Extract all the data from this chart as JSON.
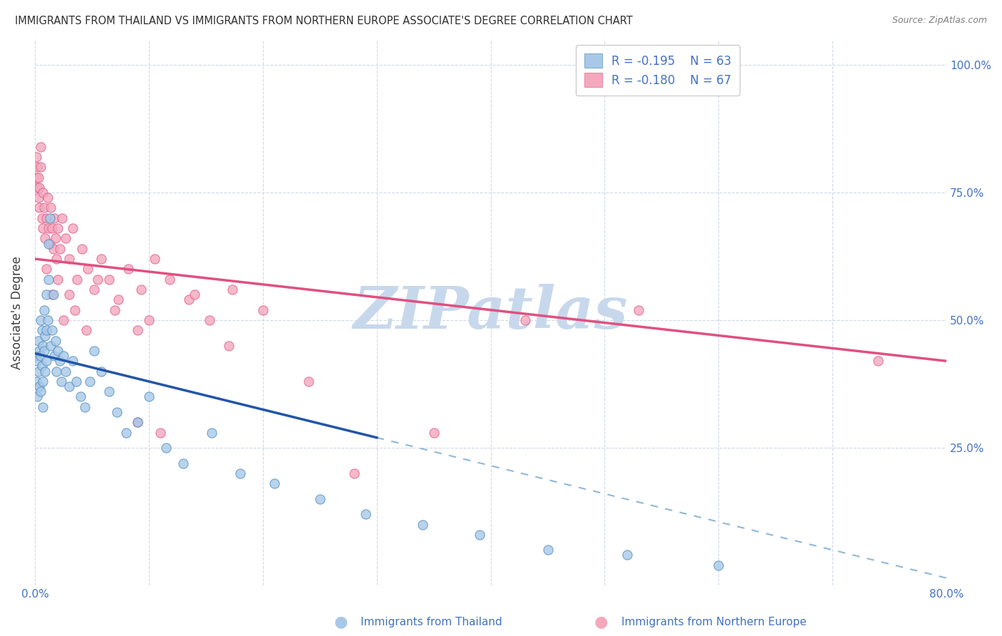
{
  "title": "IMMIGRANTS FROM THAILAND VS IMMIGRANTS FROM NORTHERN EUROPE ASSOCIATE'S DEGREE CORRELATION CHART",
  "source": "Source: ZipAtlas.com",
  "ylabel": "Associate's Degree",
  "y_tick_values": [
    0.25,
    0.5,
    0.75,
    1.0
  ],
  "legend_entries": [
    {
      "color": "#a8c8e8",
      "R": "-0.195",
      "N": "63"
    },
    {
      "color": "#f4a8bc",
      "R": "-0.180",
      "N": "67"
    }
  ],
  "legend_text_color": "#4472c4",
  "series1_name": "Immigrants from Thailand",
  "series2_name": "Immigrants from Northern Europe",
  "series1_color": "#a8c8e8",
  "series2_color": "#f4a8bc",
  "series1_edge": "#5590c0",
  "series2_edge": "#e06090",
  "trend1_color": "#2255aa",
  "trend2_color": "#e05080",
  "trend1_dashed_color": "#90b8d8",
  "background_color": "#ffffff",
  "grid_color": "#d0d8e8",
  "title_color": "#303030",
  "axis_label_color": "#4472c4",
  "trend1_x_solid_end": 0.3,
  "trend1_intercept": 0.435,
  "trend1_slope": -0.55,
  "trend2_intercept": 0.62,
  "trend2_slope": -0.25,
  "series1_x": [
    0.001,
    0.001,
    0.002,
    0.002,
    0.003,
    0.003,
    0.004,
    0.004,
    0.005,
    0.005,
    0.005,
    0.006,
    0.006,
    0.007,
    0.007,
    0.007,
    0.008,
    0.008,
    0.009,
    0.009,
    0.01,
    0.01,
    0.01,
    0.011,
    0.012,
    0.012,
    0.013,
    0.014,
    0.015,
    0.016,
    0.017,
    0.018,
    0.019,
    0.02,
    0.022,
    0.023,
    0.025,
    0.027,
    0.03,
    0.033,
    0.036,
    0.04,
    0.044,
    0.048,
    0.052,
    0.058,
    0.065,
    0.072,
    0.08,
    0.09,
    0.1,
    0.115,
    0.13,
    0.155,
    0.18,
    0.21,
    0.25,
    0.29,
    0.34,
    0.39,
    0.45,
    0.52,
    0.6
  ],
  "series1_y": [
    0.43,
    0.38,
    0.42,
    0.35,
    0.46,
    0.4,
    0.44,
    0.37,
    0.5,
    0.43,
    0.36,
    0.48,
    0.41,
    0.45,
    0.38,
    0.33,
    0.52,
    0.44,
    0.47,
    0.4,
    0.55,
    0.48,
    0.42,
    0.5,
    0.58,
    0.65,
    0.7,
    0.45,
    0.48,
    0.55,
    0.43,
    0.46,
    0.4,
    0.44,
    0.42,
    0.38,
    0.43,
    0.4,
    0.37,
    0.42,
    0.38,
    0.35,
    0.33,
    0.38,
    0.44,
    0.4,
    0.36,
    0.32,
    0.28,
    0.3,
    0.35,
    0.25,
    0.22,
    0.28,
    0.2,
    0.18,
    0.15,
    0.12,
    0.1,
    0.08,
    0.05,
    0.04,
    0.02
  ],
  "series2_x": [
    0.001,
    0.001,
    0.002,
    0.002,
    0.003,
    0.003,
    0.004,
    0.004,
    0.005,
    0.005,
    0.006,
    0.007,
    0.007,
    0.008,
    0.009,
    0.01,
    0.011,
    0.012,
    0.013,
    0.014,
    0.015,
    0.016,
    0.017,
    0.018,
    0.019,
    0.02,
    0.022,
    0.024,
    0.027,
    0.03,
    0.033,
    0.037,
    0.041,
    0.046,
    0.052,
    0.058,
    0.065,
    0.073,
    0.082,
    0.093,
    0.105,
    0.118,
    0.135,
    0.153,
    0.173,
    0.01,
    0.015,
    0.02,
    0.025,
    0.03,
    0.035,
    0.045,
    0.055,
    0.07,
    0.09,
    0.11,
    0.14,
    0.17,
    0.2,
    0.24,
    0.1,
    0.53,
    0.74,
    0.35,
    0.43,
    0.28,
    0.09
  ],
  "series2_y": [
    0.78,
    0.82,
    0.76,
    0.8,
    0.74,
    0.78,
    0.72,
    0.76,
    0.8,
    0.84,
    0.7,
    0.75,
    0.68,
    0.72,
    0.66,
    0.7,
    0.74,
    0.68,
    0.65,
    0.72,
    0.68,
    0.64,
    0.7,
    0.66,
    0.62,
    0.68,
    0.64,
    0.7,
    0.66,
    0.62,
    0.68,
    0.58,
    0.64,
    0.6,
    0.56,
    0.62,
    0.58,
    0.54,
    0.6,
    0.56,
    0.62,
    0.58,
    0.54,
    0.5,
    0.56,
    0.6,
    0.55,
    0.58,
    0.5,
    0.55,
    0.52,
    0.48,
    0.58,
    0.52,
    0.48,
    0.28,
    0.55,
    0.45,
    0.52,
    0.38,
    0.5,
    0.52,
    0.42,
    0.28,
    0.5,
    0.2,
    0.3
  ],
  "xlim": [
    0.0,
    0.8
  ],
  "ylim": [
    -0.02,
    1.05
  ],
  "watermark": "ZIPatlas",
  "watermark_color": "#c8d8ec"
}
